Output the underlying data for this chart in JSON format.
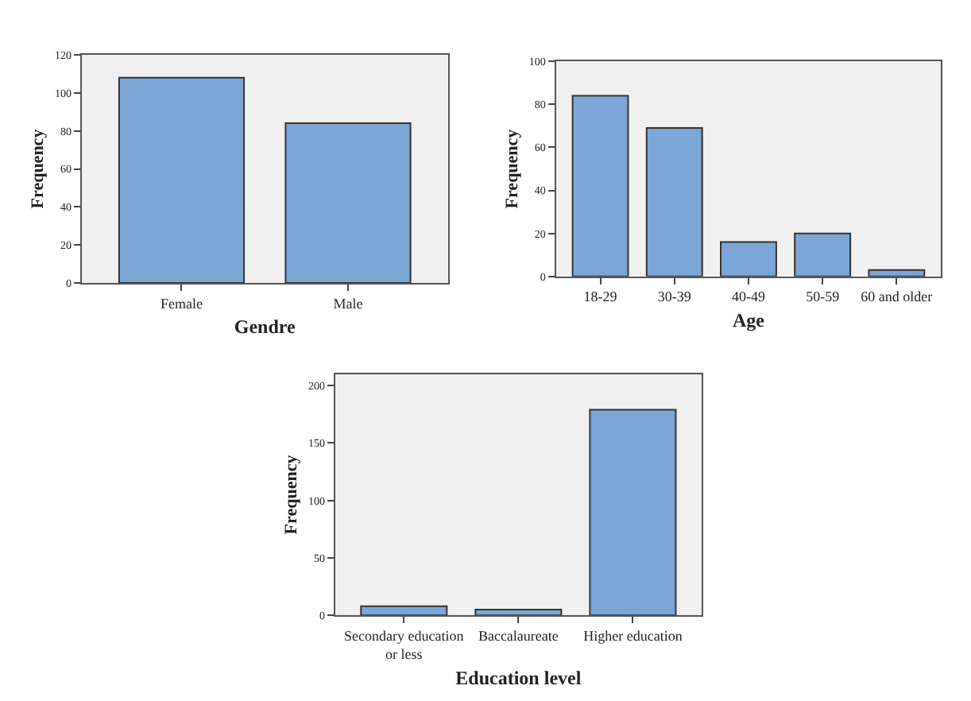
{
  "chart_data": [
    {
      "type": "bar",
      "xlabel": "Gendre",
      "ylabel": "Frequency",
      "categories": [
        "Female",
        "Male"
      ],
      "values": [
        108,
        84
      ],
      "color": "#7ba7d7",
      "ylim": [
        0,
        120
      ],
      "yticks": [
        0,
        20,
        40,
        60,
        80,
        100,
        120
      ],
      "grid": false
    },
    {
      "type": "bar",
      "xlabel": "Age",
      "ylabel": "Frequency",
      "categories": [
        "18-29",
        "30-39",
        "40-49",
        "50-59",
        "60 and older"
      ],
      "values": [
        84,
        69,
        16,
        20,
        3
      ],
      "color": "#7ba7d7",
      "ylim": [
        0,
        100
      ],
      "yticks": [
        0,
        20,
        40,
        60,
        80,
        100
      ],
      "grid": false
    },
    {
      "type": "bar",
      "xlabel": "Education level",
      "ylabel": "Frequency",
      "categories": [
        "Secondary education or less",
        "Baccalaureate",
        "Higher education"
      ],
      "values": [
        8,
        5,
        179
      ],
      "color": "#7ba7d7",
      "ylim": [
        0,
        210
      ],
      "yticks": [
        0,
        50,
        100,
        150,
        200
      ],
      "grid": false
    }
  ]
}
